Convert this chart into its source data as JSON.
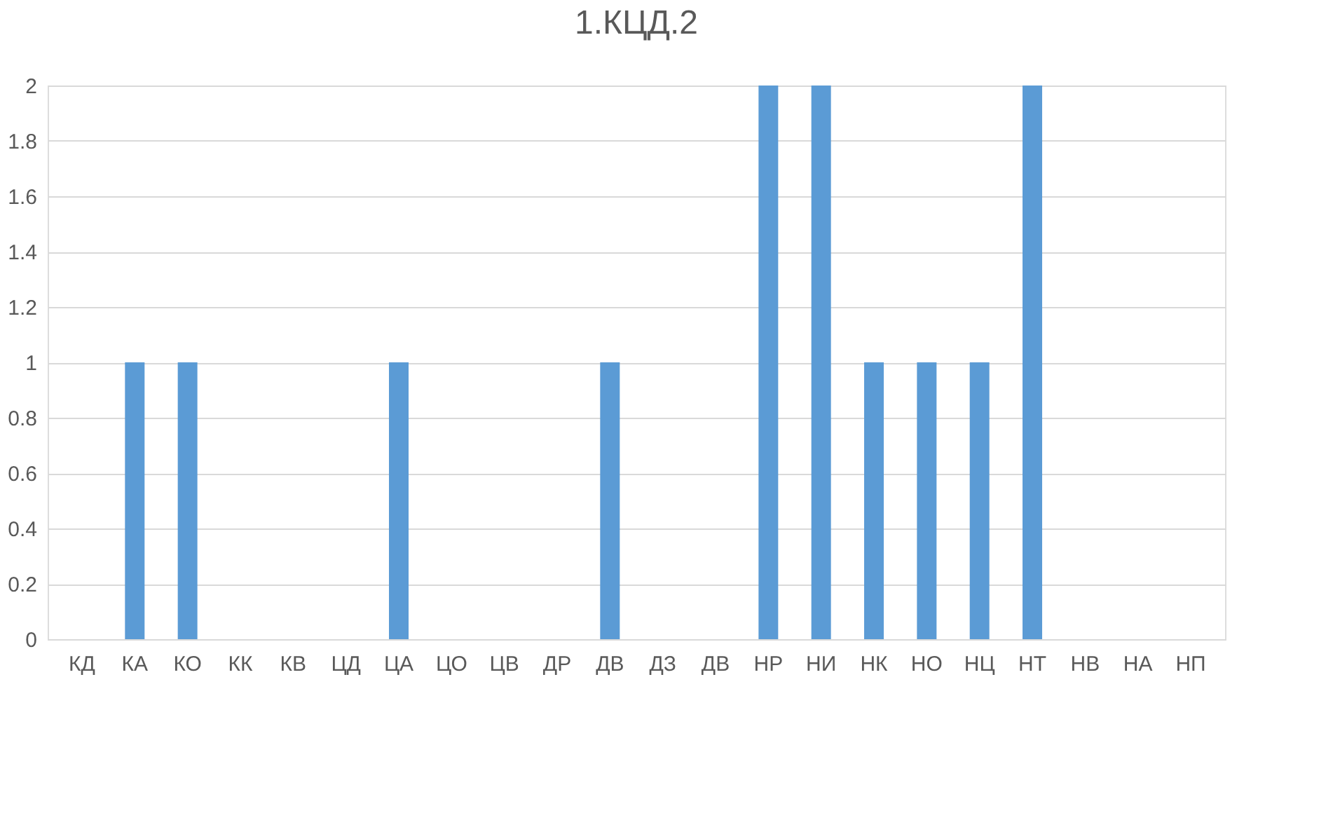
{
  "chart_data": {
    "type": "bar",
    "title": "1.КЦД.2",
    "categories": [
      "КД",
      "КА",
      "КО",
      "КК",
      "КВ",
      "ЦД",
      "ЦА",
      "ЦО",
      "ЦВ",
      "ДР",
      "ДВ",
      "ДЗ",
      "ДВ",
      "НР",
      "НИ",
      "НК",
      "НО",
      "НЦ",
      "НТ",
      "НВ",
      "НА",
      "НП"
    ],
    "values": [
      0,
      1,
      1,
      0,
      0,
      0,
      1,
      0,
      0,
      0,
      1,
      0,
      0,
      2,
      2,
      1,
      1,
      1,
      2,
      0,
      0,
      0
    ],
    "color": "#5b9bd5",
    "ylim": [
      0,
      2
    ],
    "yticks": [
      0,
      0.2,
      0.4,
      0.6,
      0.8,
      1,
      1.2,
      1.4,
      1.6,
      1.8,
      2
    ],
    "grid": "y"
  }
}
